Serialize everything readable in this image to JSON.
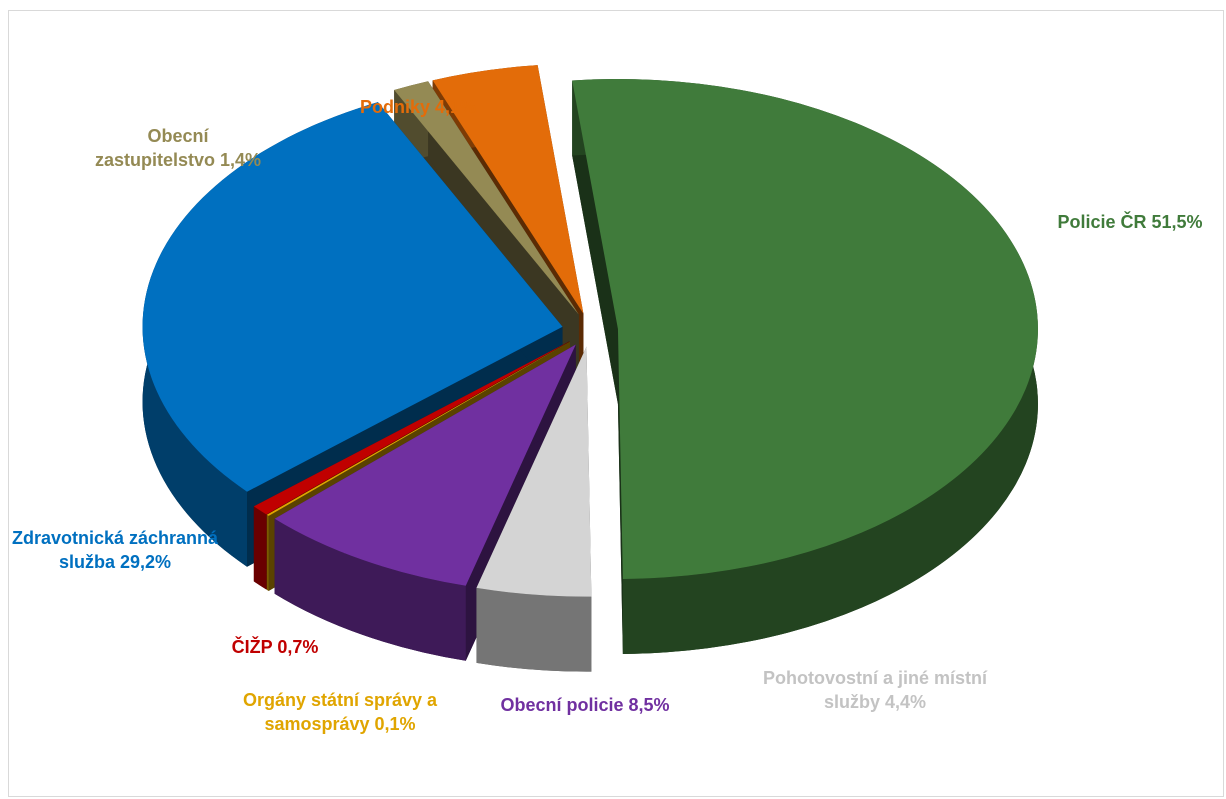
{
  "chart_data": {
    "type": "pie",
    "categories": [
      "Policie ČR",
      "Pohotovostní a jiné místní služby",
      "Obecní policie",
      "Orgány státní správy a samosprávy",
      "ČIŽP",
      "Zdravotnická záchranná služba",
      "Obecní zastupitelstvo",
      "Podniky"
    ],
    "values": [
      51.5,
      4.4,
      8.5,
      0.1,
      0.7,
      29.2,
      1.4,
      4.1
    ],
    "value_labels": [
      "51,5%",
      "4,4%",
      "8,5%",
      "0,1%",
      "0,7%",
      "29,2%",
      "1,4%",
      "4,1%"
    ],
    "colors": [
      "#407b3b",
      "#d4d4d4",
      "#7030a0",
      "#e0a500",
      "#c00000",
      "#0070c0",
      "#948a54",
      "#e36c09"
    ]
  }
}
